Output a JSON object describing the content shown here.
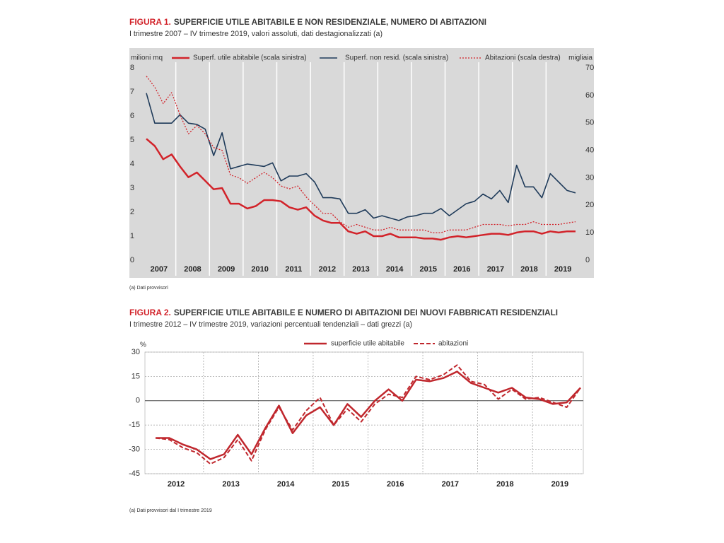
{
  "chart_data": [
    {
      "type": "line",
      "figure_label": "FIGURA 1.",
      "title": "SUPERFICIE UTILE ABITABILE E NON RESIDENZIALE, NUMERO DI ABITAZIONI",
      "subtitle": "I trimestre 2007 – IV  trimestre 2019, valori assoluti, dati destagionalizzati (a)",
      "y_label": "milioni mq",
      "y2_label": "migliaia",
      "note": "(a)    Dati provvisori",
      "categories": [
        "2007",
        null,
        null,
        null,
        "2008",
        null,
        null,
        null,
        "2009",
        null,
        null,
        null,
        "2010",
        null,
        null,
        null,
        "2011",
        null,
        null,
        null,
        "2012",
        null,
        null,
        null,
        "2013",
        null,
        null,
        null,
        "2014",
        null,
        null,
        null,
        "2015",
        null,
        null,
        null,
        "2016",
        null,
        null,
        null,
        "2017",
        null,
        null,
        null,
        "2018",
        null,
        null,
        null,
        "2019",
        null,
        null,
        null
      ],
      "series": [
        {
          "name": "Superf. utile abitabile (scala sinistra)",
          "color": "#d2232a",
          "line_style": "solid",
          "values": [
            5.05,
            4.75,
            4.2,
            4.4,
            3.9,
            3.45,
            3.65,
            3.3,
            2.95,
            3.0,
            2.35,
            2.35,
            2.15,
            2.25,
            2.5,
            2.5,
            2.45,
            2.2,
            2.1,
            2.2,
            1.85,
            1.65,
            1.55,
            1.55,
            1.2,
            1.1,
            1.2,
            1.0,
            1.0,
            1.1,
            0.95,
            0.95,
            0.95,
            0.9,
            0.9,
            0.85,
            0.95,
            1.0,
            0.95,
            1.0,
            1.05,
            1.1,
            1.1,
            1.05,
            1.15,
            1.2,
            1.2,
            1.1,
            1.2,
            1.15,
            1.2,
            1.2
          ]
        },
        {
          "name": "Superf. non resid. (scala sinistra)",
          "color": "#1f3b5a",
          "line_style": "solid",
          "values": [
            6.95,
            5.7,
            5.7,
            5.7,
            6.05,
            5.7,
            5.65,
            5.45,
            4.35,
            5.3,
            3.8,
            3.9,
            4.0,
            3.95,
            3.9,
            4.05,
            3.3,
            3.5,
            3.5,
            3.6,
            3.25,
            2.6,
            2.6,
            2.55,
            1.95,
            1.95,
            2.1,
            1.75,
            1.85,
            1.75,
            1.65,
            1.8,
            1.85,
            1.95,
            1.95,
            2.15,
            1.85,
            2.1,
            2.35,
            2.45,
            2.75,
            2.55,
            2.9,
            2.4,
            3.95,
            3.05,
            3.05,
            2.6,
            3.6,
            3.25,
            2.9,
            2.8
          ]
        },
        {
          "name": "Abitazioni (scala destra)",
          "color": "#d2232a",
          "line_style": "dotted",
          "axis": "y2",
          "values": [
            67,
            63,
            57,
            61,
            53,
            46,
            49,
            46,
            41,
            40,
            31,
            30,
            28,
            30,
            32,
            30,
            27,
            26,
            27,
            23,
            20,
            17,
            17,
            14,
            12,
            13,
            12,
            11,
            11,
            12,
            11,
            11,
            11,
            11,
            10,
            10,
            11,
            11,
            11,
            12,
            13,
            13,
            13,
            12.5,
            13,
            13,
            14,
            13,
            13,
            13,
            13.5,
            14
          ]
        }
      ],
      "ylim": [
        0,
        8
      ],
      "yticks": [
        0,
        1,
        2,
        3,
        4,
        5,
        6,
        7,
        8
      ],
      "y2lim": [
        0,
        70
      ],
      "y2ticks": [
        0,
        10,
        20,
        30,
        40,
        50,
        60,
        70
      ],
      "background": "#d9d9d9"
    },
    {
      "type": "line",
      "figure_label": "FIGURA 2.",
      "title": "SUPERFICIE UTILE ABITABILE E NUMERO DI ABITAZIONI DEI NUOVI FABBRICATI RESIDENZIALI",
      "subtitle": "I trimestre 2012 – IV trimestre 2019, variazioni percentuali tendenziali – dati grezzi (a)",
      "y_label": "%",
      "note": "(a)    Dati provvisori dal I trimestre 2019",
      "categories": [
        "2012",
        null,
        null,
        null,
        "2013",
        null,
        null,
        null,
        "2014",
        null,
        null,
        null,
        "2015",
        null,
        null,
        null,
        "2016",
        null,
        null,
        null,
        "2017",
        null,
        null,
        null,
        "2018",
        null,
        null,
        null,
        "2019",
        null,
        null,
        null
      ],
      "series": [
        {
          "name": "superficie utile abitabile",
          "color": "#c0272d",
          "line_style": "solid",
          "values": [
            -23,
            -23,
            -27,
            -30,
            -36,
            -33,
            -21,
            -33,
            -17,
            -3,
            -20,
            -9,
            -4,
            -15,
            -2,
            -10,
            0,
            7,
            0,
            13,
            12,
            14,
            18,
            11,
            8,
            5,
            8,
            2,
            1,
            -2,
            -1,
            8
          ]
        },
        {
          "name": "abitazioni",
          "color": "#c0272d",
          "line_style": "dashed",
          "values": [
            -23,
            -24,
            -29,
            -32,
            -39,
            -35,
            -24,
            -37,
            -18,
            -4,
            -18,
            -6,
            2,
            -15,
            -5,
            -13,
            -2,
            4,
            2,
            15,
            13,
            16,
            22,
            12,
            10,
            1,
            7,
            1,
            2,
            -1,
            -4,
            8
          ]
        }
      ],
      "ylim": [
        -45,
        30
      ],
      "yticks": [
        -45,
        -30,
        -15,
        0,
        15,
        30
      ],
      "grid": true
    }
  ]
}
